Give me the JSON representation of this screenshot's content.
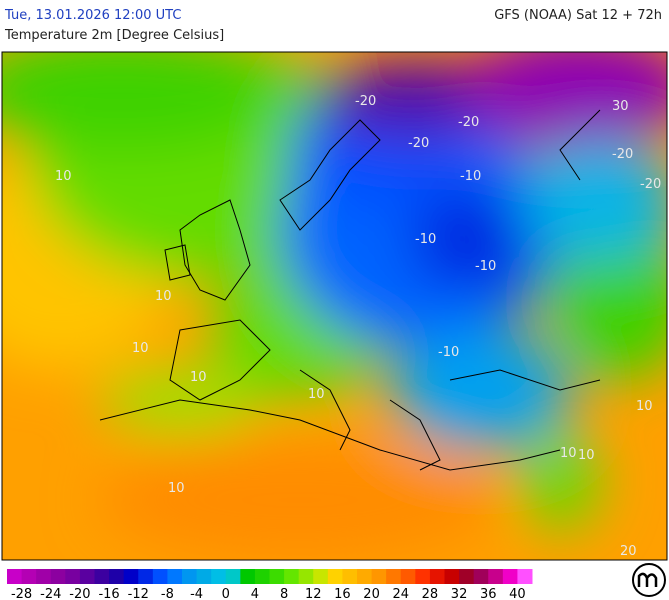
{
  "header": {
    "date": "Tue, 13.01.2026 12:00 UTC",
    "model": "GFS (NOAA) Sat 12 + 72h",
    "title": "Temperature 2m [Degree Celsius]"
  },
  "colorbar": {
    "range": [
      -30,
      42
    ],
    "colors": [
      "#c800c8",
      "#b400b4",
      "#a000a8",
      "#8c00a0",
      "#7800a0",
      "#5a00a0",
      "#3c00a0",
      "#1e00a8",
      "#0000c8",
      "#0028e6",
      "#0050ff",
      "#0078ff",
      "#0096f0",
      "#00aae6",
      "#00bee6",
      "#00c8c8",
      "#00c800",
      "#1ed200",
      "#3cdc00",
      "#64e600",
      "#96e600",
      "#c8e600",
      "#ffd200",
      "#ffbe00",
      "#ffaa00",
      "#ff9600",
      "#ff7800",
      "#ff5a00",
      "#ff3200",
      "#e61400",
      "#c80000",
      "#a00028",
      "#a0005a",
      "#c8008c",
      "#f000c8",
      "#ff50ff"
    ],
    "ticks": [
      -28,
      -24,
      -20,
      -16,
      -12,
      -8,
      -4,
      0,
      4,
      8,
      12,
      16,
      20,
      24,
      28,
      32,
      36,
      40
    ]
  },
  "contour_labels": [
    "10",
    "10",
    "10",
    "10",
    "10",
    "10",
    "-10",
    "-10",
    "-10",
    "-10",
    "-20",
    "-20",
    "-20",
    "-20",
    "-20",
    "30",
    "10",
    "10",
    "10",
    "20"
  ]
}
